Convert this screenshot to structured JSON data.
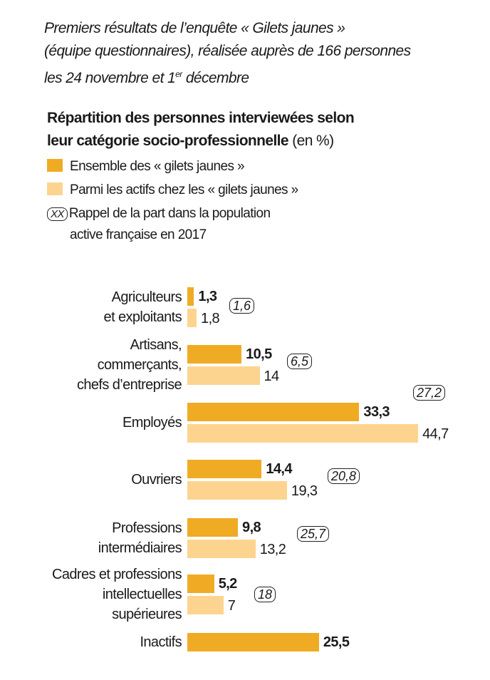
{
  "intro": [
    "Premiers résultats de l’enquête « Gilets jaunes »",
    "(équipe questionnaires), réalisée auprès de 166 personnes",
    "les 24 novembre et 1",
    "er",
    " décembre"
  ],
  "chart_data": {
    "type": "bar",
    "orientation": "horizontal",
    "title": "Répartition des personnes interviewées selon leur catégorie socio-professionnelle",
    "title_lines": [
      "Répartition des personnes interviewées selon",
      "leur catégorie socio-professionnelle"
    ],
    "unit": "(en %)",
    "legend": {
      "series1": "Ensemble des « gilets jaunes »",
      "series2": "Parmi les actifs chez les « gilets jaunes »",
      "ref_symbol": "XX",
      "ref_lines": [
        "Rappel de la part dans la population",
        "active française en 2017"
      ]
    },
    "colors": {
      "series1": "#f0ab24",
      "series2": "#fdd48f"
    },
    "categories": [
      {
        "label": [
          "Agriculteurs",
          "et exploitants"
        ],
        "all": "1,3",
        "actifs": "1,8",
        "ref": "1,6"
      },
      {
        "label": [
          "Artisans,",
          "commerçants,",
          "chefs d’entreprise"
        ],
        "all": "10,5",
        "actifs": "14",
        "ref": "6,5"
      },
      {
        "label": [
          "Employés"
        ],
        "all": "33,3",
        "actifs": "44,7",
        "ref": "27,2"
      },
      {
        "label": [
          "Ouvriers"
        ],
        "all": "14,4",
        "actifs": "19,3",
        "ref": "20,8"
      },
      {
        "label": [
          "Professions",
          "intermédiaires"
        ],
        "all": "9,8",
        "actifs": "13,2",
        "ref": "25,7"
      },
      {
        "label": [
          "Cadres et professions",
          "intellectuelles",
          "supérieures"
        ],
        "all": "5,2",
        "actifs": "7",
        "ref": "18"
      },
      {
        "label": [
          "Inactifs"
        ],
        "all": "25,5",
        "actifs": null,
        "ref": null
      }
    ]
  }
}
